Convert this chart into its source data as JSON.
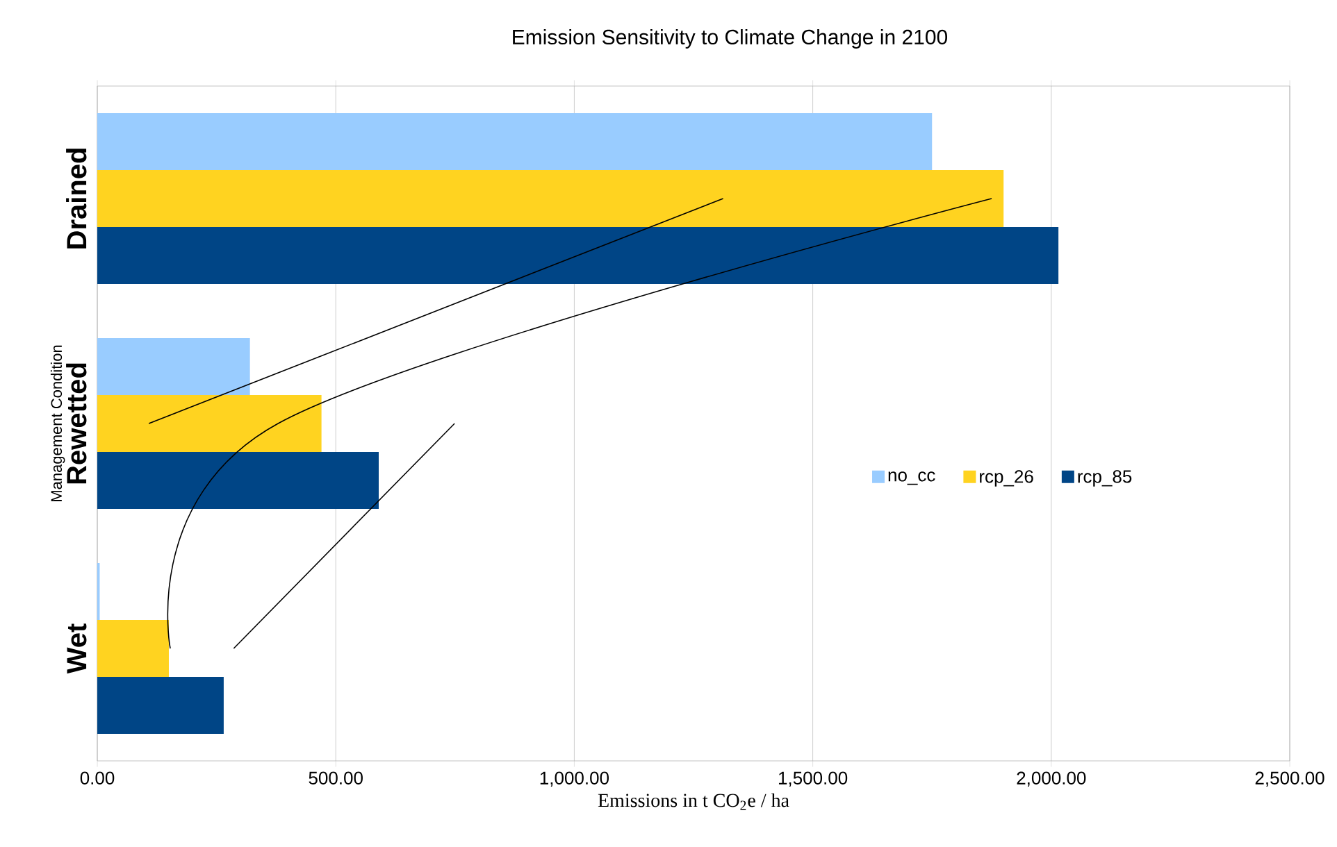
{
  "chart_data": {
    "type": "bar",
    "orientation": "horizontal",
    "title": "Emission Sensitivity to Climate Change in 2100",
    "xlabel": "Emissions in t CO$_{2}$e / ha",
    "ylabel": "Management Condition",
    "categories": [
      "Drained",
      "Rewetted",
      "Wet"
    ],
    "series": [
      {
        "name": "no_cc",
        "color": "#99ccff",
        "values": [
          1750,
          320,
          5
        ]
      },
      {
        "name": "rcp_26",
        "color": "#ffd320",
        "values": [
          1900,
          470,
          150
        ]
      },
      {
        "name": "rcp_85",
        "color": "#004586",
        "values": [
          2015,
          590,
          265
        ]
      },
      {
        "type": "line",
        "color": "#000000",
        "values": [
          1312,
          108,
          null
        ]
      },
      {
        "type": "line",
        "color": "#000000",
        "values": [
          1875,
          379,
          153
        ]
      },
      {
        "type": "line",
        "color": "#000000",
        "values": [
          null,
          749,
          286
        ]
      }
    ],
    "xlim": [
      0,
      2500
    ],
    "xticks": [
      {
        "value": 0,
        "label": "0.00"
      },
      {
        "value": 500,
        "label": "500.00"
      },
      {
        "value": 1000,
        "label": "1,000.00"
      },
      {
        "value": 1500,
        "label": "1,500.00"
      },
      {
        "value": 2000,
        "label": "2,000.00"
      },
      {
        "value": 2500,
        "label": "2,500.00"
      }
    ],
    "grid": "x",
    "legend": "right"
  }
}
